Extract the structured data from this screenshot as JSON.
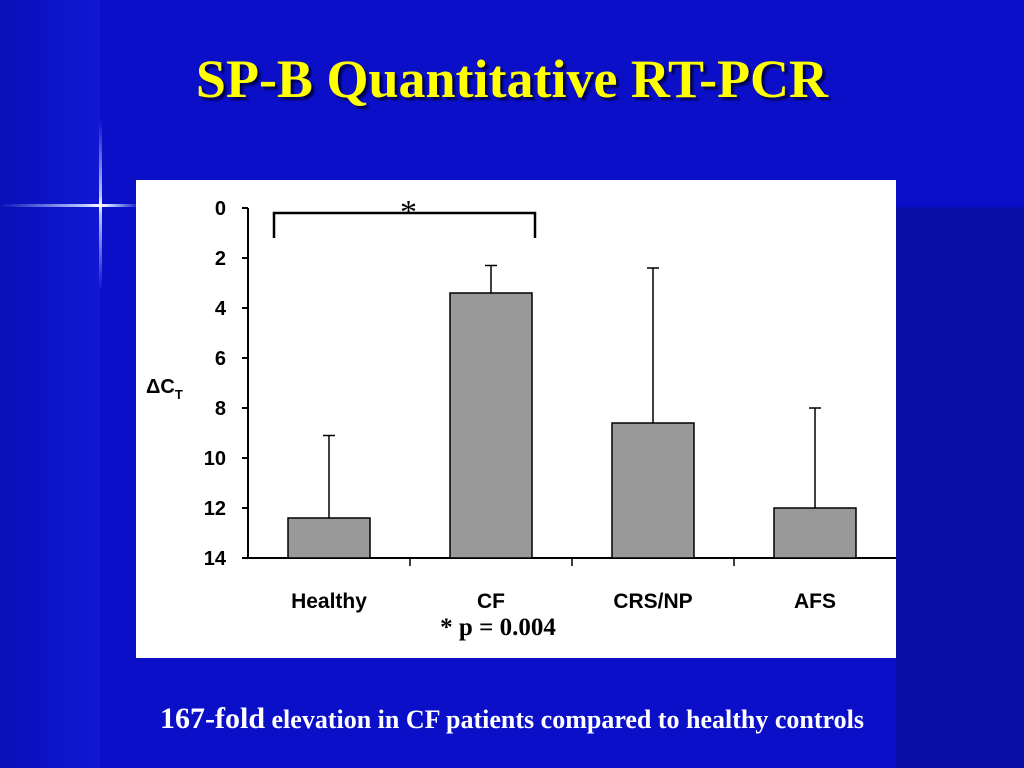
{
  "slide": {
    "title": "SP-B Quantitative RT-PCR",
    "caption_emphasis": "167-fold",
    "caption_rest": " elevation in CF patients compared to healthy controls"
  },
  "colors": {
    "background": "#0b10c8",
    "title": "#ffff00",
    "bar_fill": "#999999",
    "bar_stroke": "#000000"
  },
  "chart_data": {
    "type": "bar",
    "title": "",
    "ylabel_main": "ΔC",
    "ylabel_sub": "T",
    "ylim": [
      0,
      14
    ],
    "y_inverted": true,
    "y_ticks": [
      0,
      2,
      4,
      6,
      8,
      10,
      12,
      14
    ],
    "categories": [
      "Healthy",
      "CF",
      "CRS/NP",
      "AFS"
    ],
    "values": [
      12.4,
      3.4,
      8.6,
      12.0
    ],
    "error_upper": [
      9.1,
      2.3,
      2.4,
      8.0
    ],
    "grid": false,
    "significance": {
      "from": "Healthy",
      "to": "CF",
      "marker": "*",
      "note": "* p = 0.004"
    }
  }
}
